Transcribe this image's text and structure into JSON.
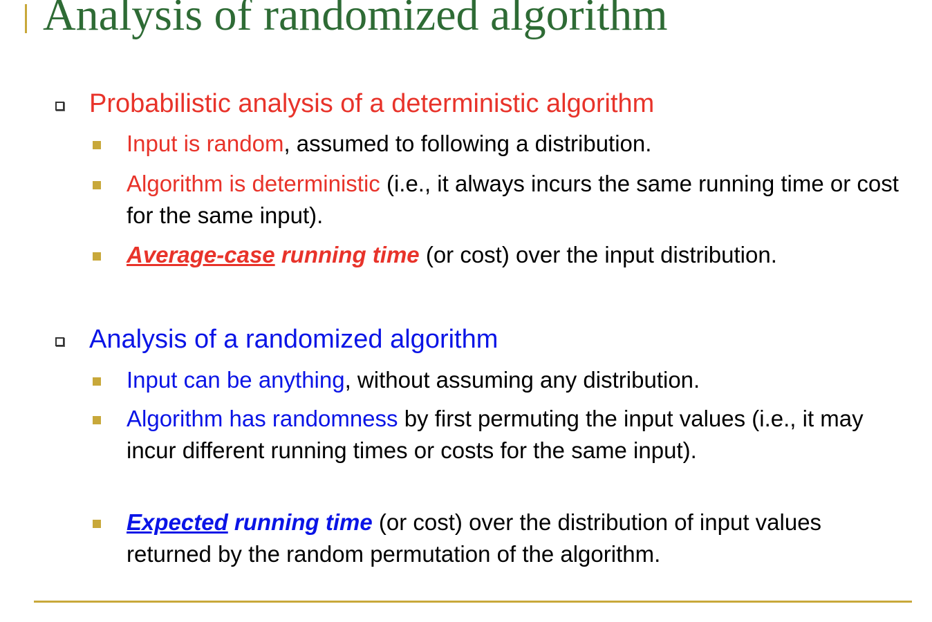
{
  "slide": {
    "title": "Analysis of randomized algorithm",
    "sections": [
      {
        "heading": "Probabilistic analysis of a deterministic algorithm",
        "items": [
          {
            "highlight": "Input is random",
            "rest": ", assumed to following a distribution."
          },
          {
            "highlight": "Algorithm is deterministic",
            "rest": " (i.e., it always incurs the same running time or cost for the same input)."
          },
          {
            "emph_underlined": "Average-case",
            "emph": " running time",
            "rest": " (or cost) over the input distribution."
          }
        ]
      },
      {
        "heading": "Analysis of a randomized algorithm",
        "items": [
          {
            "highlight": "Input can be anything",
            "rest": ", without assuming any distribution."
          },
          {
            "highlight": "Algorithm has randomness",
            "rest": " by first permuting the input values (i.e., it may incur different running times or costs for the same input)."
          },
          {
            "emph_underlined": "Expected",
            "emph": " running time",
            "rest": " (or cost) over the distribution of input values returned by the random permutation of the algorithm."
          }
        ]
      }
    ]
  },
  "colors": {
    "title": "#2e6b35",
    "section1": "#e8332a",
    "section2": "#0a14e6",
    "accent": "#c8a83a"
  },
  "icons": {
    "level1_bullet": "hollow-square-icon",
    "level2_bullet": "filled-square-icon"
  }
}
